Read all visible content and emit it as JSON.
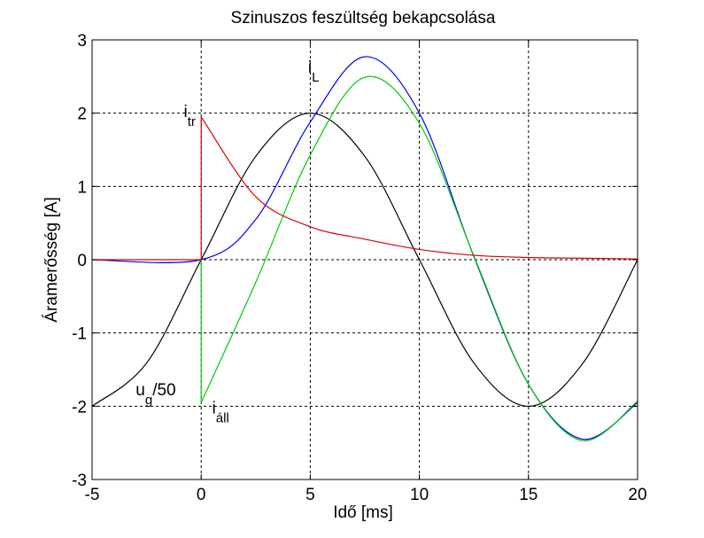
{
  "chart_data": {
    "type": "line",
    "title": "Szinuszos feszültség bekapcsolása",
    "xlabel": "Idő [ms]",
    "ylabel": "Áramerősség [A]",
    "xlim": [
      -5,
      20
    ],
    "ylim": [
      -3,
      3
    ],
    "xticks": [
      -5,
      0,
      5,
      10,
      15,
      20
    ],
    "yticks": [
      -3,
      -2,
      -1,
      0,
      1,
      2,
      3
    ],
    "xtick_labels": [
      "-5",
      "0",
      "5",
      "10",
      "15",
      "20"
    ],
    "ytick_labels": [
      "-3",
      "-2",
      "-1",
      "0",
      "1",
      "2",
      "3"
    ],
    "grid": true,
    "grid_style": "dashed",
    "series": [
      {
        "color": "#000000",
        "x": [
          -5,
          -2.5,
          0,
          2.5,
          5,
          7.5,
          10,
          12.5,
          15,
          17.5,
          20
        ],
        "values": [
          -2,
          -1.41,
          0,
          1.41,
          2,
          1.41,
          0,
          -1.41,
          -2,
          -1.41,
          0
        ]
      },
      {
        "color": "#0000ff",
        "x": [
          -5,
          0,
          2.5,
          5,
          7.5,
          10,
          12.5,
          15,
          17.5,
          20
        ],
        "values": [
          0,
          0,
          0.55,
          1.88,
          2.77,
          2.0,
          0.04,
          -1.7,
          -2.45,
          -1.95
        ]
      },
      {
        "color": "#00cc00",
        "x": [
          0,
          0,
          2.5,
          5,
          7.5,
          10,
          12.5,
          15,
          17.5,
          20
        ],
        "values": [
          0,
          -1.95,
          -0.31,
          1.43,
          2.49,
          1.86,
          0.05,
          -1.7,
          -2.47,
          -1.93
        ]
      },
      {
        "color": "#dd0000",
        "x": [
          -5,
          0,
          0,
          2.5,
          5,
          7.5,
          10,
          12.5,
          15,
          17.5,
          20
        ],
        "values": [
          0,
          0,
          1.95,
          0.86,
          0.45,
          0.28,
          0.14,
          0.06,
          0.03,
          0.02,
          0.01
        ]
      }
    ],
    "annotations": [
      {
        "text": "i",
        "sub": "L",
        "x": 4.9,
        "y": 2.55
      },
      {
        "text": "i",
        "sub": "tr",
        "x": -0.8,
        "y": 1.95
      },
      {
        "text": "u",
        "sub": "g",
        "text_after": "/50",
        "x": -3.0,
        "y": -1.85
      },
      {
        "text": "i",
        "sub": "áll",
        "x": 0.5,
        "y": -2.1
      }
    ]
  }
}
